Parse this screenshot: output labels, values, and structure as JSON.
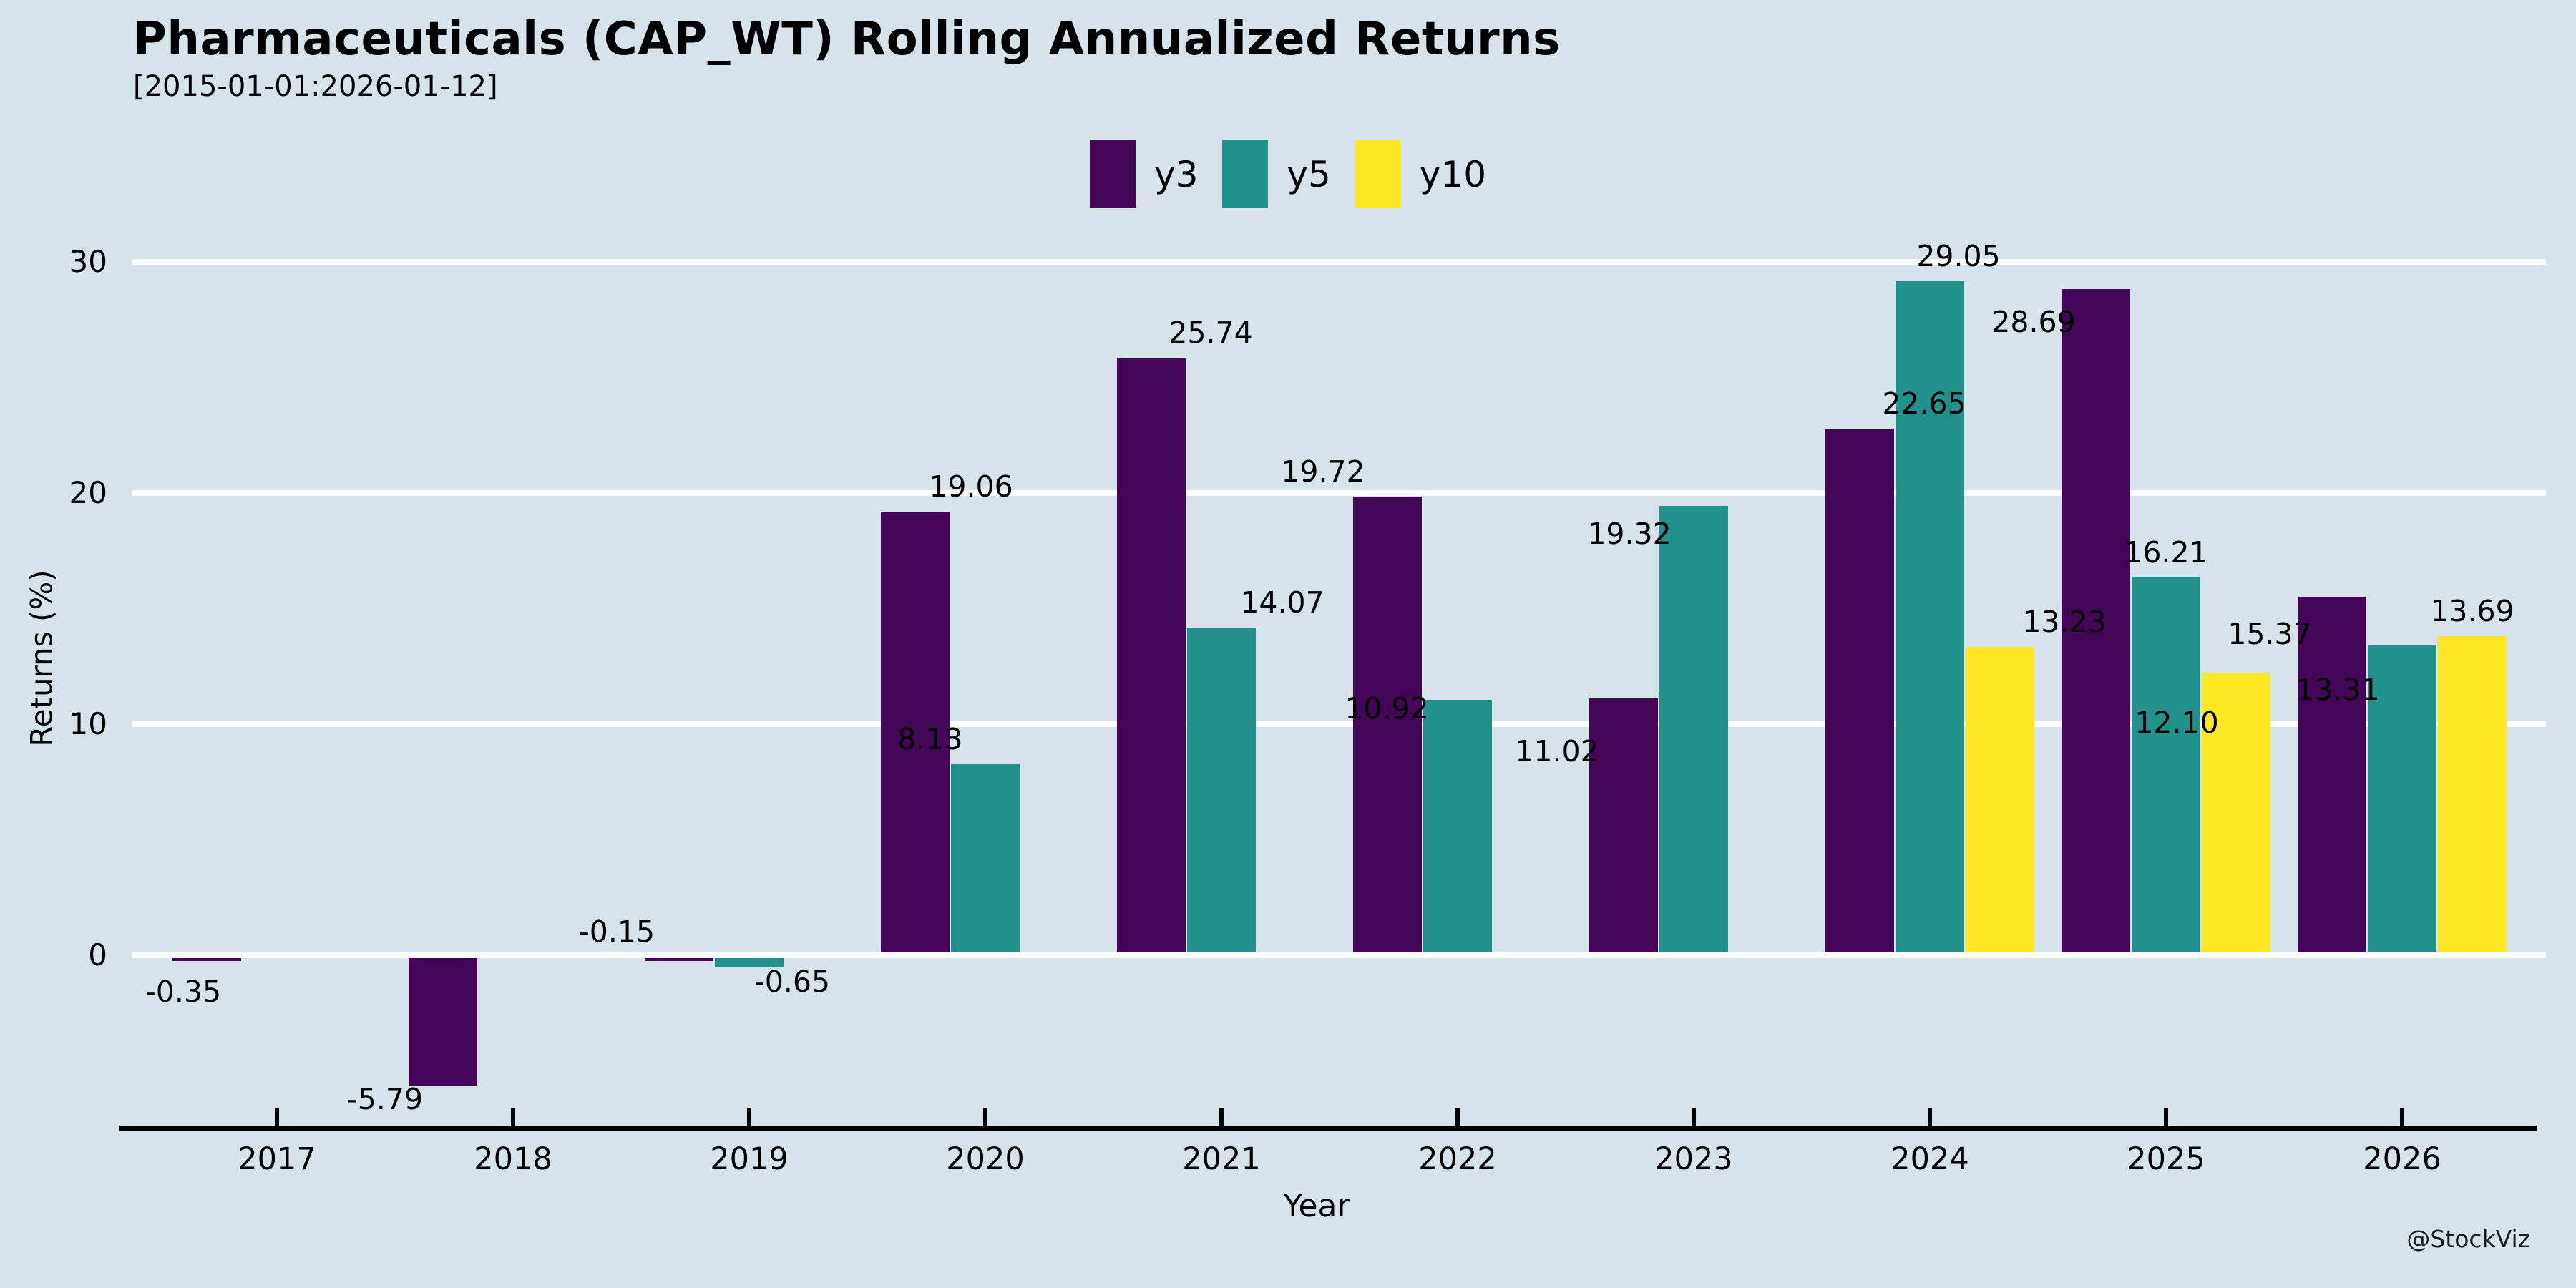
{
  "header": {
    "title": "Pharmaceuticals (CAP_WT) Rolling Annualized Returns",
    "subtitle": "[2015-01-01:2026-01-12]"
  },
  "watermark": "@StockViz",
  "colors": {
    "background": "#d6e3eb",
    "gridline": "#ffffff",
    "axis_line": "#000000",
    "text": "#000000",
    "y3": "#440457",
    "y5": "#23918b",
    "y10": "#fde725"
  },
  "legend": {
    "items": [
      {
        "label": "y3",
        "color": "#440457"
      },
      {
        "label": "y5",
        "color": "#23918b"
      },
      {
        "label": "y10",
        "color": "#fde725"
      }
    ]
  },
  "chart_data": {
    "type": "bar",
    "title": "Pharmaceuticals (CAP_WT) Rolling Annualized Returns",
    "subtitle": "[2015-01-01:2026-01-12]",
    "xlabel": "Year",
    "ylabel": "Returns (%)",
    "categories": [
      "2017",
      "2018",
      "2019",
      "2020",
      "2021",
      "2022",
      "2023",
      "2024",
      "2025",
      "2026"
    ],
    "series": [
      {
        "name": "y3",
        "color": "#440457",
        "values": [
          -0.35,
          -5.79,
          -0.15,
          19.06,
          25.74,
          19.72,
          11.02,
          22.65,
          28.69,
          15.37
        ]
      },
      {
        "name": "y5",
        "color": "#23918b",
        "values": [
          null,
          null,
          -0.65,
          8.13,
          14.07,
          10.92,
          19.32,
          29.05,
          16.21,
          13.31
        ]
      },
      {
        "name": "y10",
        "color": "#fde725",
        "values": [
          null,
          null,
          null,
          null,
          null,
          null,
          null,
          13.23,
          12.1,
          13.69
        ]
      }
    ],
    "value_labels": true,
    "yticks": [
      0,
      10,
      20,
      30
    ],
    "ylim": [
      -7.6,
      30.8
    ],
    "grid": true,
    "legend_position": "top center",
    "gridline_color": "#ffffff",
    "background_color": "#d6e3eb"
  }
}
